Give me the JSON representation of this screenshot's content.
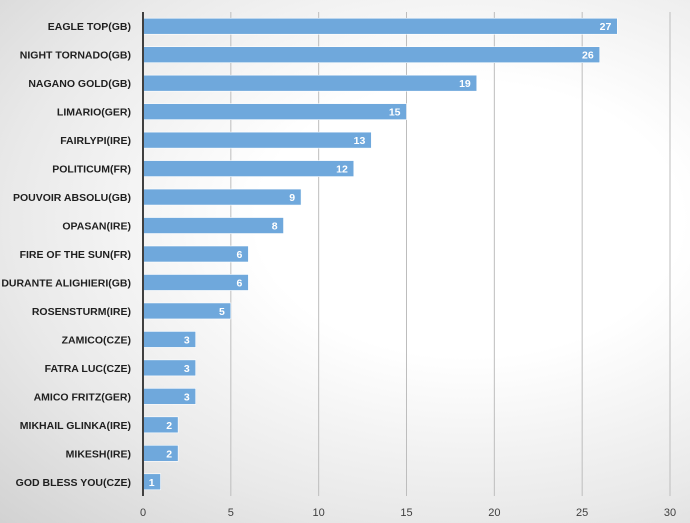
{
  "chart_data": {
    "type": "bar",
    "orientation": "horizontal",
    "title": "",
    "xlabel": "",
    "ylabel": "",
    "categories": [
      "EAGLE TOP(GB)",
      "NIGHT TORNADO(GB)",
      "NAGANO GOLD(GB)",
      "LIMARIO(GER)",
      "FAIRLYPI(IRE)",
      "POLITICUM(FR)",
      "POUVOIR ABSOLU(GB)",
      "OPASAN(IRE)",
      "FIRE OF THE SUN(FR)",
      "DURANTE ALIGHIERI(GB)",
      "ROSENSTURM(IRE)",
      "ZAMICO(CZE)",
      "FATRA LUC(CZE)",
      "AMICO FRITZ(GER)",
      "MIKHAIL GLINKA(IRE)",
      "MIKESH(IRE)",
      "GOD BLESS YOU(CZE)"
    ],
    "values": [
      27,
      26,
      19,
      15,
      13,
      12,
      9,
      8,
      6,
      6,
      5,
      3,
      3,
      3,
      2,
      2,
      1
    ],
    "xlim": [
      0,
      30
    ],
    "xticks": [
      0,
      5,
      10,
      15,
      20,
      25,
      30
    ],
    "grid": true,
    "legend": "none",
    "colors": {
      "bar": "#6fa8dc",
      "grid": "#bdbdbd",
      "axis": "#404040"
    }
  }
}
